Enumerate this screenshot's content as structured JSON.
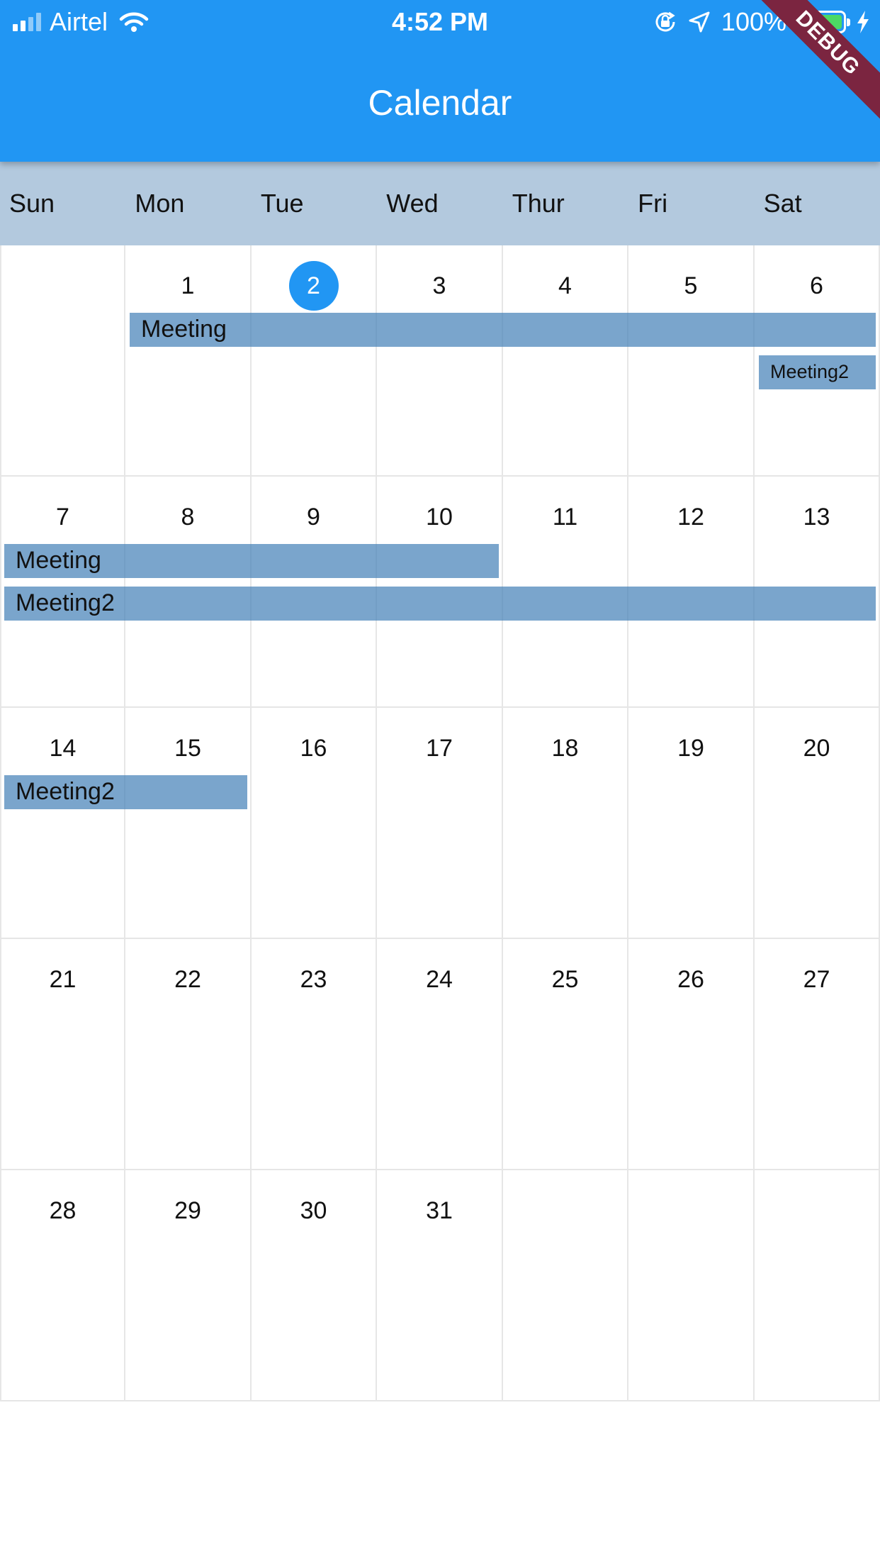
{
  "status_bar": {
    "carrier": "Airtel",
    "time": "4:52 PM",
    "battery_percent": "100%",
    "battery_level": 1.0,
    "icons": [
      "signal-icon",
      "wifi-icon",
      "rotation-lock-icon",
      "location-icon",
      "battery-icon",
      "charging-bolt-icon"
    ]
  },
  "app_bar": {
    "title": "Calendar",
    "debug_banner": "DEBUG",
    "color": "#2196F3"
  },
  "weekdays": [
    "Sun",
    "Mon",
    "Tue",
    "Wed",
    "Thur",
    "Fri",
    "Sat"
  ],
  "weeks": [
    [
      "",
      "1",
      "2",
      "3",
      "4",
      "5",
      "6"
    ],
    [
      "7",
      "8",
      "9",
      "10",
      "11",
      "12",
      "13"
    ],
    [
      "14",
      "15",
      "16",
      "17",
      "18",
      "19",
      "20"
    ],
    [
      "21",
      "22",
      "23",
      "24",
      "25",
      "26",
      "27"
    ],
    [
      "28",
      "29",
      "30",
      "31",
      "",
      "",
      ""
    ]
  ],
  "today": "2",
  "events": [
    {
      "title": "Meeting",
      "start_day": 1,
      "end_day": 6
    },
    {
      "title": "Meeting2",
      "start_day": 6,
      "end_day": 6
    },
    {
      "title": "Meeting",
      "start_day": 7,
      "end_day": 10
    },
    {
      "title": "Meeting2",
      "start_day": 7,
      "end_day": 13
    },
    {
      "title": "Meeting2",
      "start_day": 14,
      "end_day": 15
    }
  ],
  "colors": {
    "app_bar": "#2196F3",
    "weekday_header": "#b3c9de",
    "event": "#4682b9",
    "today_circle": "#2196F3"
  }
}
